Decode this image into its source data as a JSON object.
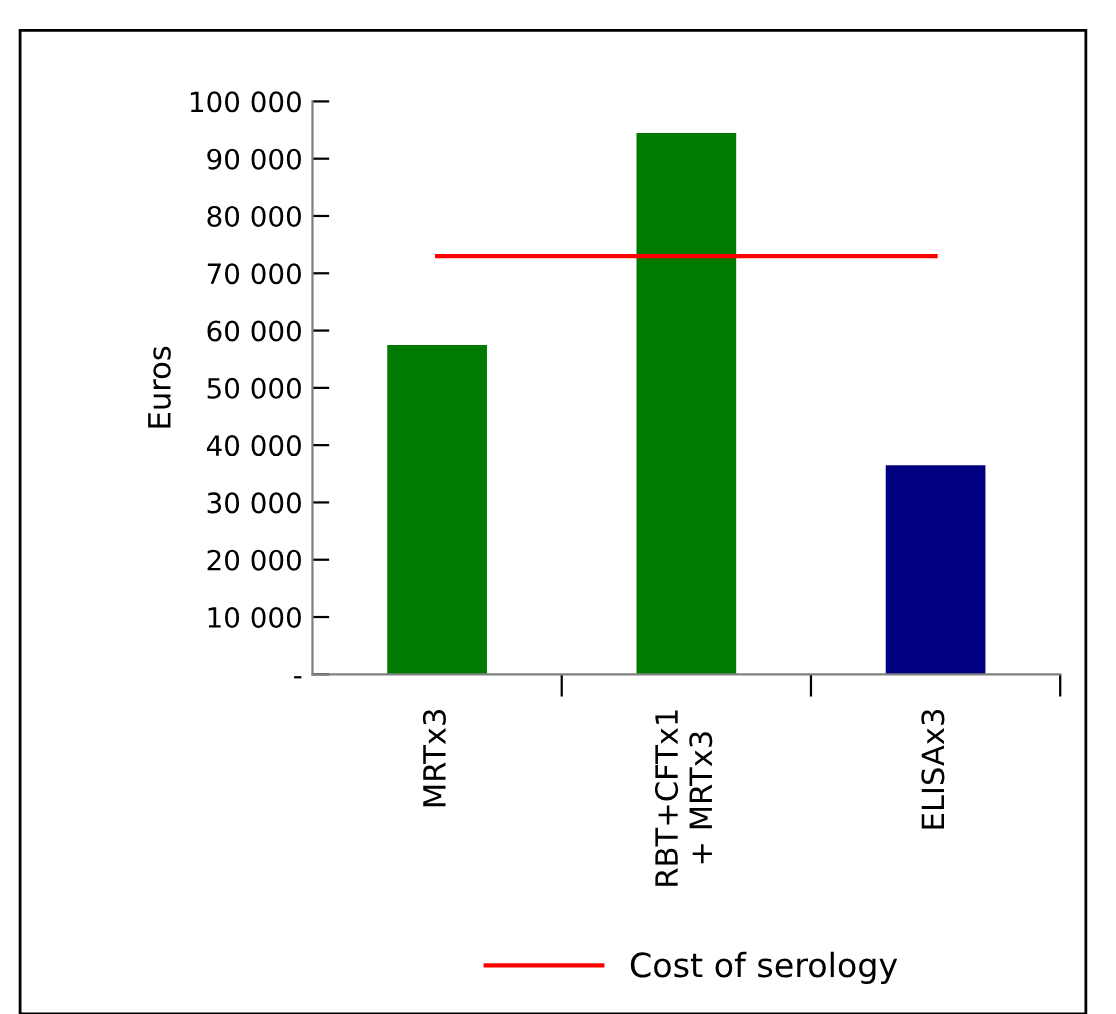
{
  "chart_data": {
    "type": "bar",
    "ylabel": "Euros",
    "categories": [
      "MRTx3",
      "RBT+CFTx1\n+ MRTx3",
      "ELISAx3"
    ],
    "series": [
      {
        "colors": [
          "#007a00",
          "#007a00",
          "#000080"
        ],
        "values": [
          57500,
          94500,
          36500
        ]
      },
      {
        "type": "line",
        "name": "Cost of serology",
        "color": "#ff0000",
        "values": [
          73000,
          73000,
          73000
        ]
      }
    ],
    "ylim": [
      0,
      100000
    ],
    "yticks": [
      {
        "value": 0,
        "label": "-"
      },
      {
        "value": 10000,
        "label": "10 000"
      },
      {
        "value": 20000,
        "label": "20 000"
      },
      {
        "value": 30000,
        "label": "30 000"
      },
      {
        "value": 40000,
        "label": "40 000"
      },
      {
        "value": 50000,
        "label": "50 000"
      },
      {
        "value": 60000,
        "label": "60 000"
      },
      {
        "value": 70000,
        "label": "70 000"
      },
      {
        "value": 80000,
        "label": "80 000"
      },
      {
        "value": 90000,
        "label": "90 000"
      },
      {
        "value": 100000,
        "label": "100 000"
      }
    ],
    "grid": false,
    "legend": "bottom"
  }
}
